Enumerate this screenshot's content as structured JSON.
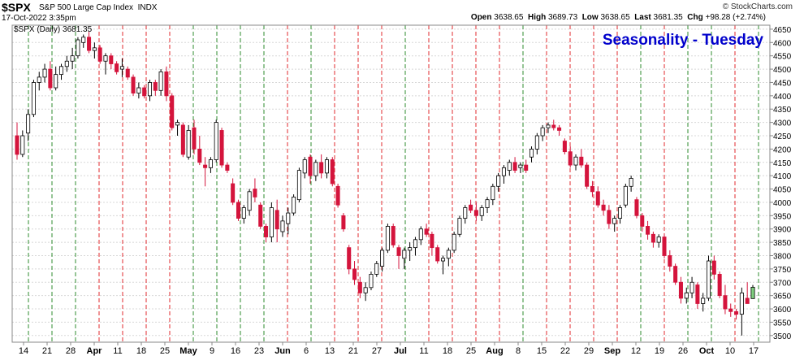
{
  "header": {
    "symbol": "$SPX",
    "name": "S&P 500 Large Cap Index",
    "exchange": "INDX",
    "date": "17-Oct-2022 3:35pm",
    "open_label": "Open",
    "open": "3638.65",
    "high_label": "High",
    "high": "3689.73",
    "low_label": "Low",
    "low": "3638.65",
    "last_label": "Last",
    "last": "3681.35",
    "chg_label": "Chg",
    "chg": "+98.28 (+2.74%)",
    "credit": "© StockCharts.com"
  },
  "chart_data": {
    "type": "candlestick",
    "title": "Seasonality - Tuesday",
    "series_label": "$SPX (Daily) 3681.35",
    "ylim": [
      3475,
      4665
    ],
    "yticks": [
      3500,
      3550,
      3600,
      3650,
      3700,
      3750,
      3800,
      3850,
      3900,
      3950,
      4000,
      4050,
      4100,
      4150,
      4200,
      4250,
      4300,
      4350,
      4400,
      4450,
      4500,
      4550,
      4600,
      4650
    ],
    "xlabels": [
      {
        "label": "14",
        "bold": false
      },
      {
        "label": "21",
        "bold": false
      },
      {
        "label": "28",
        "bold": false
      },
      {
        "label": "Apr",
        "bold": true
      },
      {
        "label": "11",
        "bold": false
      },
      {
        "label": "18",
        "bold": false
      },
      {
        "label": "25",
        "bold": false
      },
      {
        "label": "May",
        "bold": true
      },
      {
        "label": "9",
        "bold": false
      },
      {
        "label": "16",
        "bold": false
      },
      {
        "label": "23",
        "bold": false
      },
      {
        "label": "Jun",
        "bold": true
      },
      {
        "label": "6",
        "bold": false
      },
      {
        "label": "13",
        "bold": false
      },
      {
        "label": "21",
        "bold": false
      },
      {
        "label": "27",
        "bold": false
      },
      {
        "label": "Jul",
        "bold": true
      },
      {
        "label": "11",
        "bold": false
      },
      {
        "label": "18",
        "bold": false
      },
      {
        "label": "25",
        "bold": false
      },
      {
        "label": "Aug",
        "bold": true
      },
      {
        "label": "8",
        "bold": false
      },
      {
        "label": "15",
        "bold": false
      },
      {
        "label": "22",
        "bold": false
      },
      {
        "label": "29",
        "bold": false
      },
      {
        "label": "Sep",
        "bold": true
      },
      {
        "label": "12",
        "bold": false
      },
      {
        "label": "19",
        "bold": false
      },
      {
        "label": "26",
        "bold": false
      },
      {
        "label": "Oct",
        "bold": true
      },
      {
        "label": "10",
        "bold": false
      },
      {
        "label": "17",
        "bold": false
      }
    ],
    "tuesday_markers": [
      "up",
      "up",
      "up",
      "down",
      "down",
      "down",
      "down",
      "up",
      "up",
      "up",
      "up",
      "down",
      "up",
      "down",
      "down",
      "down",
      "up",
      "down",
      "down",
      "down",
      "down",
      "up",
      "down",
      "down",
      "down",
      "down",
      "up",
      "down",
      "up",
      "up",
      "down",
      "up"
    ],
    "marker_colors": {
      "up": "#2e8b2e",
      "down": "#e0282e"
    },
    "candle_colors": {
      "up_fill": "#ffffff",
      "down_fill": "#d4143c",
      "outline": "#000000"
    },
    "candles": [
      [
        4250,
        4300,
        4160,
        4180
      ],
      [
        4180,
        4270,
        4170,
        4250
      ],
      [
        4260,
        4350,
        4230,
        4330
      ],
      [
        4330,
        4460,
        4320,
        4450
      ],
      [
        4450,
        4490,
        4420,
        4470
      ],
      [
        4470,
        4520,
        4450,
        4500
      ],
      [
        4500,
        4530,
        4420,
        4430
      ],
      [
        4430,
        4510,
        4420,
        4480
      ],
      [
        4480,
        4520,
        4460,
        4510
      ],
      [
        4510,
        4550,
        4490,
        4530
      ],
      [
        4530,
        4580,
        4500,
        4550
      ],
      [
        4550,
        4620,
        4540,
        4610
      ],
      [
        4600,
        4630,
        4580,
        4620
      ],
      [
        4620,
        4640,
        4560,
        4570
      ],
      [
        4570,
        4600,
        4540,
        4580
      ],
      [
        4580,
        4590,
        4520,
        4530
      ],
      [
        4530,
        4560,
        4480,
        4550
      ],
      [
        4550,
        4560,
        4500,
        4520
      ],
      [
        4520,
        4530,
        4480,
        4490
      ],
      [
        4500,
        4540,
        4470,
        4510
      ],
      [
        4500,
        4510,
        4460,
        4470
      ],
      [
        4470,
        4480,
        4400,
        4410
      ],
      [
        4410,
        4450,
        4390,
        4430
      ],
      [
        4430,
        4440,
        4390,
        4400
      ],
      [
        4400,
        4460,
        4380,
        4450
      ],
      [
        4450,
        4460,
        4400,
        4420
      ],
      [
        4420,
        4500,
        4400,
        4490
      ],
      [
        4490,
        4510,
        4380,
        4400
      ],
      [
        4400,
        4410,
        4270,
        4280
      ],
      [
        4290,
        4310,
        4250,
        4300
      ],
      [
        4290,
        4300,
        4170,
        4180
      ],
      [
        4170,
        4290,
        4160,
        4270
      ],
      [
        4280,
        4310,
        4180,
        4200
      ],
      [
        4200,
        4250,
        4140,
        4150
      ],
      [
        4140,
        4170,
        4060,
        4130
      ],
      [
        4130,
        4170,
        4110,
        4160
      ],
      [
        4160,
        4310,
        4150,
        4300
      ],
      [
        4270,
        4280,
        4130,
        4140
      ],
      [
        4140,
        4150,
        4110,
        4120
      ],
      [
        4070,
        4090,
        3990,
        4000
      ],
      [
        4000,
        4010,
        3930,
        3940
      ],
      [
        3940,
        3990,
        3920,
        3980
      ],
      [
        3970,
        4050,
        3950,
        4040
      ],
      [
        4050,
        4090,
        4000,
        4020
      ],
      [
        3990,
        4000,
        3900,
        3910
      ],
      [
        3910,
        3920,
        3850,
        3870
      ],
      [
        3870,
        4000,
        3850,
        3980
      ],
      [
        3970,
        4010,
        3850,
        3900
      ],
      [
        3890,
        3950,
        3870,
        3930
      ],
      [
        3920,
        3980,
        3880,
        3960
      ],
      [
        3960,
        4030,
        3950,
        4020
      ],
      [
        4010,
        4130,
        4000,
        4120
      ],
      [
        4110,
        4170,
        4090,
        4160
      ],
      [
        4170,
        4180,
        4070,
        4100
      ],
      [
        4100,
        4160,
        4080,
        4150
      ],
      [
        4150,
        4180,
        4090,
        4110
      ],
      [
        4110,
        4170,
        4090,
        4160
      ],
      [
        4160,
        4170,
        4060,
        4070
      ],
      [
        4060,
        4070,
        3980,
        3990
      ],
      [
        3950,
        3960,
        3890,
        3900
      ],
      [
        3830,
        3840,
        3730,
        3750
      ],
      [
        3750,
        3780,
        3690,
        3710
      ],
      [
        3700,
        3720,
        3640,
        3660
      ],
      [
        3660,
        3700,
        3630,
        3680
      ],
      [
        3680,
        3740,
        3670,
        3730
      ],
      [
        3730,
        3780,
        3720,
        3770
      ],
      [
        3760,
        3830,
        3740,
        3820
      ],
      [
        3820,
        3920,
        3810,
        3910
      ],
      [
        3910,
        3920,
        3830,
        3840
      ],
      [
        3830,
        3840,
        3750,
        3800
      ],
      [
        3790,
        3830,
        3750,
        3820
      ],
      [
        3820,
        3850,
        3780,
        3830
      ],
      [
        3830,
        3870,
        3800,
        3860
      ],
      [
        3860,
        3910,
        3840,
        3900
      ],
      [
        3900,
        3920,
        3870,
        3880
      ],
      [
        3880,
        3890,
        3800,
        3830
      ],
      [
        3830,
        3840,
        3770,
        3780
      ],
      [
        3780,
        3800,
        3730,
        3790
      ],
      [
        3790,
        3830,
        3760,
        3820
      ],
      [
        3820,
        3890,
        3810,
        3880
      ],
      [
        3880,
        3950,
        3870,
        3940
      ],
      [
        3940,
        3990,
        3920,
        3980
      ],
      [
        3990,
        4010,
        3960,
        3970
      ],
      [
        3970,
        4000,
        3930,
        3950
      ],
      [
        3950,
        3990,
        3930,
        3980
      ],
      [
        3980,
        4020,
        3960,
        4010
      ],
      [
        4010,
        4070,
        3990,
        4060
      ],
      [
        4060,
        4110,
        4040,
        4100
      ],
      [
        4100,
        4140,
        4070,
        4130
      ],
      [
        4120,
        4160,
        4100,
        4150
      ],
      [
        4150,
        4170,
        4110,
        4120
      ],
      [
        4130,
        4150,
        4110,
        4140
      ],
      [
        4140,
        4160,
        4110,
        4120
      ],
      [
        4170,
        4210,
        4150,
        4200
      ],
      [
        4200,
        4260,
        4180,
        4250
      ],
      [
        4250,
        4290,
        4230,
        4280
      ],
      [
        4280,
        4300,
        4260,
        4290
      ],
      [
        4290,
        4310,
        4270,
        4280
      ],
      [
        4280,
        4290,
        4250,
        4270
      ],
      [
        4230,
        4240,
        4180,
        4190
      ],
      [
        4190,
        4210,
        4130,
        4140
      ],
      [
        4140,
        4180,
        4120,
        4170
      ],
      [
        4170,
        4200,
        4130,
        4140
      ],
      [
        4140,
        4150,
        4050,
        4060
      ],
      [
        4060,
        4080,
        4020,
        4040
      ],
      [
        4040,
        4060,
        3980,
        3990
      ],
      [
        3990,
        4010,
        3950,
        3970
      ],
      [
        3970,
        3990,
        3900,
        3920
      ],
      [
        3920,
        3950,
        3890,
        3940
      ],
      [
        3940,
        3990,
        3920,
        3980
      ],
      [
        3990,
        4070,
        3980,
        4060
      ],
      [
        4060,
        4100,
        4040,
        4090
      ],
      [
        4010,
        4020,
        3940,
        3950
      ],
      [
        3950,
        3960,
        3890,
        3910
      ],
      [
        3910,
        3930,
        3860,
        3880
      ],
      [
        3880,
        3890,
        3830,
        3850
      ],
      [
        3850,
        3880,
        3830,
        3870
      ],
      [
        3870,
        3880,
        3790,
        3800
      ],
      [
        3800,
        3820,
        3740,
        3760
      ],
      [
        3760,
        3770,
        3690,
        3700
      ],
      [
        3700,
        3720,
        3620,
        3640
      ],
      [
        3640,
        3680,
        3620,
        3660
      ],
      [
        3660,
        3720,
        3640,
        3700
      ],
      [
        3690,
        3700,
        3600,
        3620
      ],
      [
        3620,
        3660,
        3590,
        3640
      ],
      [
        3640,
        3800,
        3630,
        3780
      ],
      [
        3780,
        3800,
        3710,
        3730
      ],
      [
        3730,
        3740,
        3640,
        3650
      ],
      [
        3650,
        3690,
        3580,
        3600
      ],
      [
        3600,
        3620,
        3570,
        3590
      ],
      [
        3590,
        3600,
        3560,
        3580
      ],
      [
        3580,
        3680,
        3500,
        3660
      ],
      [
        3640,
        3700,
        3620,
        3620
      ],
      [
        3638.65,
        3689.73,
        3638.65,
        3681.35
      ]
    ]
  }
}
